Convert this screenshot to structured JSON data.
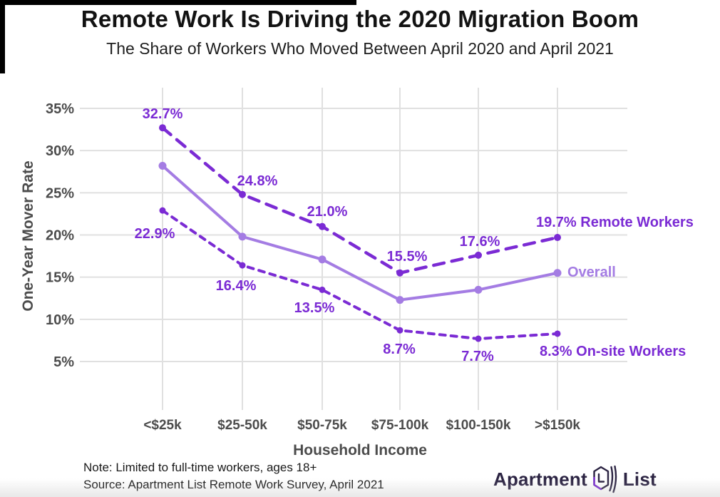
{
  "title": "Remote Work Is Driving the 2020 Migration Boom",
  "subtitle": "The Share of Workers Who Moved Between April 2020 and April 2021",
  "colors": {
    "dark_purple": "#7B2BD4",
    "light_purple": "#A47CE3",
    "grid": "#e0e0e0",
    "axis_text": "#4c4c4c",
    "title_text": "#121212",
    "note_text": "#191919",
    "logo_text": "#2b2342"
  },
  "chart_data": {
    "type": "line",
    "title": "Remote Work Is Driving the 2020 Migration Boom",
    "subtitle": "The Share of Workers Who Moved Between April 2020 and April 2021",
    "categories": [
      "<$25k",
      "$25-50k",
      "$50-75k",
      "$75-100k",
      "$100-150k",
      ">$150k"
    ],
    "xlabel": "Household Income",
    "ylabel": "One-Year Mover Rate",
    "yticks": [
      35,
      30,
      25,
      20,
      15,
      10,
      5
    ],
    "ytick_labels": [
      "35%",
      "30%",
      "25%",
      "20%",
      "15%",
      "10%",
      "5%"
    ],
    "ylim": [
      2.5,
      37.5
    ],
    "grid": true,
    "legend_position": "inline-end-of-line",
    "series": [
      {
        "name": "Overall",
        "style": "solid",
        "color_key": "light_purple",
        "values": [
          28.2,
          19.8,
          17.1,
          12.3,
          13.5,
          15.5
        ],
        "point_labels": [
          "",
          "",
          "",
          "",
          "",
          ""
        ],
        "end_label": "Overall"
      },
      {
        "name": "Remote Workers",
        "style": "dashed",
        "color_key": "dark_purple",
        "values": [
          32.7,
          24.8,
          21.0,
          15.5,
          17.6,
          19.7
        ],
        "point_labels": [
          "32.7%",
          "24.8%",
          "21.0%",
          "15.5%",
          "17.6%",
          "19.7% Remote Workers"
        ],
        "end_label": ""
      },
      {
        "name": "On-site Workers",
        "style": "dashed-small",
        "color_key": "dark_purple",
        "values": [
          22.9,
          16.4,
          13.5,
          8.7,
          7.7,
          8.3
        ],
        "point_labels": [
          "22.9%",
          "16.4%",
          "13.5%",
          "8.7%",
          "7.7%",
          "8.3% On-site Workers"
        ],
        "end_label": ""
      }
    ]
  },
  "notes": {
    "line1": "Note: Limited to full-time workers, ages 18+",
    "line2": "Source: Apartment List Remote Work Survey, April 2021"
  },
  "logo": {
    "part1": "Apartment",
    "part2": "List"
  }
}
